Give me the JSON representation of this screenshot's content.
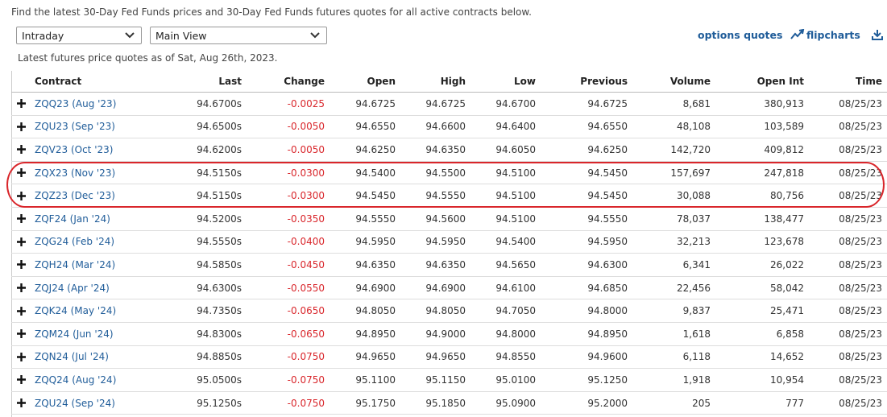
{
  "intro": "Find the latest 30-Day Fed Funds prices and 30-Day Fed Funds futures quotes for all active contracts below.",
  "controls": {
    "period": "Intraday",
    "view": "Main View",
    "links": [
      "options quotes",
      "flipcharts"
    ]
  },
  "as_of": "Latest futures price quotes as of Sat, Aug 26th, 2023.",
  "table": {
    "columns": [
      "Contract",
      "Last",
      "Change",
      "Open",
      "High",
      "Low",
      "Previous",
      "Volume",
      "Open Int",
      "Time"
    ],
    "rows": [
      [
        "ZQQ23 (Aug '23)",
        "94.6700s",
        "-0.0025",
        "94.6725",
        "94.6725",
        "94.6700",
        "94.6725",
        "8,681",
        "380,913",
        "08/25/23"
      ],
      [
        "ZQU23 (Sep '23)",
        "94.6500s",
        "-0.0050",
        "94.6550",
        "94.6600",
        "94.6400",
        "94.6550",
        "48,108",
        "103,589",
        "08/25/23"
      ],
      [
        "ZQV23 (Oct '23)",
        "94.6200s",
        "-0.0050",
        "94.6250",
        "94.6350",
        "94.6050",
        "94.6250",
        "142,720",
        "409,812",
        "08/25/23"
      ],
      [
        "ZQX23 (Nov '23)",
        "94.5150s",
        "-0.0300",
        "94.5400",
        "94.5500",
        "94.5100",
        "94.5450",
        "157,697",
        "247,818",
        "08/25/23"
      ],
      [
        "ZQZ23 (Dec '23)",
        "94.5150s",
        "-0.0300",
        "94.5450",
        "94.5550",
        "94.5100",
        "94.5450",
        "30,088",
        "80,756",
        "08/25/23"
      ],
      [
        "ZQF24 (Jan '24)",
        "94.5200s",
        "-0.0350",
        "94.5550",
        "94.5600",
        "94.5100",
        "94.5550",
        "78,037",
        "138,477",
        "08/25/23"
      ],
      [
        "ZQG24 (Feb '24)",
        "94.5550s",
        "-0.0400",
        "94.5950",
        "94.5950",
        "94.5400",
        "94.5950",
        "32,213",
        "123,678",
        "08/25/23"
      ],
      [
        "ZQH24 (Mar '24)",
        "94.5850s",
        "-0.0450",
        "94.6350",
        "94.6350",
        "94.5650",
        "94.6300",
        "6,341",
        "26,022",
        "08/25/23"
      ],
      [
        "ZQJ24 (Apr '24)",
        "94.6300s",
        "-0.0550",
        "94.6900",
        "94.6900",
        "94.6100",
        "94.6850",
        "22,456",
        "58,042",
        "08/25/23"
      ],
      [
        "ZQK24 (May '24)",
        "94.7350s",
        "-0.0650",
        "94.8050",
        "94.8050",
        "94.7050",
        "94.8000",
        "9,837",
        "25,471",
        "08/25/23"
      ],
      [
        "ZQM24 (Jun '24)",
        "94.8300s",
        "-0.0650",
        "94.8950",
        "94.9000",
        "94.8000",
        "94.8950",
        "1,618",
        "6,858",
        "08/25/23"
      ],
      [
        "ZQN24 (Jul '24)",
        "94.8850s",
        "-0.0750",
        "94.9650",
        "94.9650",
        "94.8550",
        "94.9600",
        "6,118",
        "14,652",
        "08/25/23"
      ],
      [
        "ZQQ24 (Aug '24)",
        "95.0500s",
        "-0.0750",
        "95.1100",
        "95.1150",
        "95.0100",
        "95.1250",
        "1,918",
        "10,954",
        "08/25/23"
      ],
      [
        "ZQU24 (Sep '24)",
        "95.1250s",
        "-0.0750",
        "95.1750",
        "95.1850",
        "95.0900",
        "95.2000",
        "205",
        "777",
        "08/25/23"
      ]
    ]
  }
}
